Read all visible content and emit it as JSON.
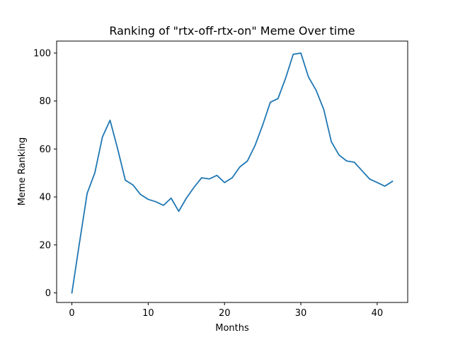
{
  "chart_data": {
    "type": "line",
    "title": "Ranking of \"rtx-off-rtx-on\" Meme Over time",
    "xlabel": "Months",
    "ylabel": "Meme Ranking",
    "xlim": [
      -2,
      44
    ],
    "ylim": [
      -4,
      105
    ],
    "xticks": [
      0,
      10,
      20,
      30,
      40
    ],
    "yticks": [
      0,
      20,
      40,
      60,
      80,
      100
    ],
    "grid": false,
    "series": [
      {
        "color": "#1f77b4",
        "x": [
          0,
          1,
          2,
          3,
          4,
          5,
          6,
          7,
          8,
          9,
          10,
          11,
          12,
          13,
          14,
          15,
          16,
          17,
          18,
          19,
          20,
          21,
          22,
          23,
          24,
          25,
          26,
          27,
          28,
          29,
          30,
          31,
          32,
          33,
          34,
          35,
          36,
          37,
          38,
          39,
          40,
          41,
          42
        ],
        "y": [
          0,
          21,
          41.5,
          50,
          65,
          72,
          60,
          47,
          45,
          41,
          39,
          38,
          36.5,
          39.5,
          34,
          39.5,
          44,
          48,
          47.5,
          49,
          46,
          48,
          52.5,
          55,
          61.5,
          70,
          79.5,
          81,
          89.5,
          99.5,
          100,
          90,
          84.5,
          76.5,
          63,
          57.5,
          55,
          54.5,
          51,
          47.5,
          46,
          44.5,
          46.5
        ]
      }
    ]
  }
}
